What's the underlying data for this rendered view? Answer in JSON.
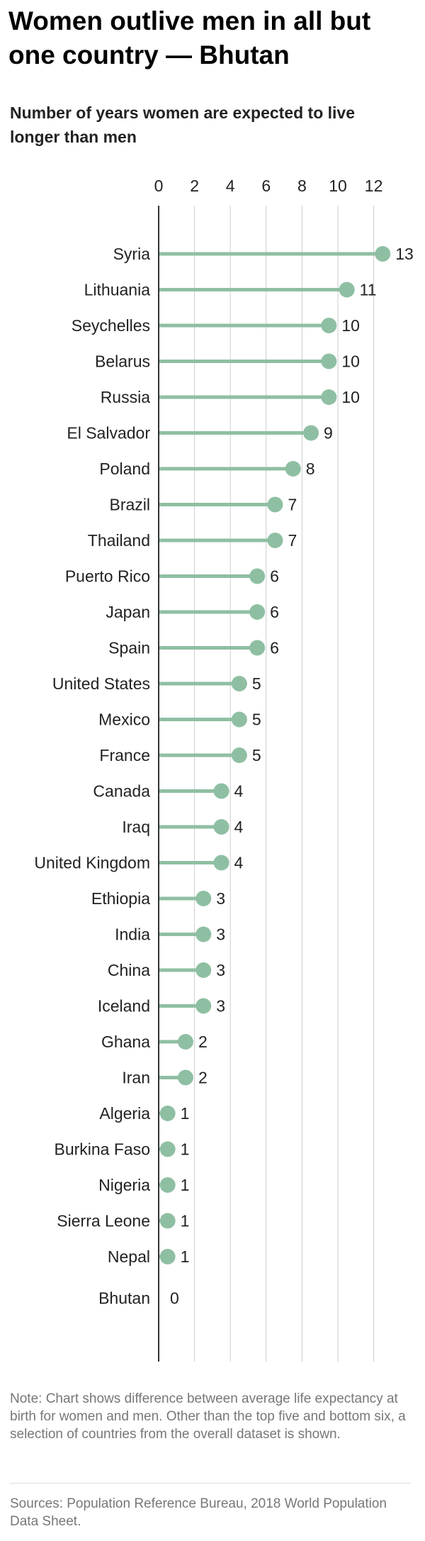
{
  "title": "Women outlive men in all but one country — Bhutan",
  "subtitle": "Number of years women are expected to live longer than men",
  "note": "Note: Chart shows difference between average life expectancy at birth for women and men. Other than the top five and bottom six, a selection of countries from the overall dataset is shown.",
  "sources": "Sources: Population Reference Bureau, 2018 World Population Data Sheet.",
  "colors": {
    "dot": "#8fbfa3",
    "grid": "#cccccc",
    "axis": "#333333",
    "text": "#222222",
    "note": "#777777"
  },
  "chart_data": {
    "type": "lollipop",
    "orientation": "horizontal",
    "xlim": [
      0,
      13
    ],
    "x_ticks": [
      0,
      2,
      4,
      6,
      8,
      10,
      12
    ],
    "grid": true,
    "categories": [
      "Syria",
      "Lithuania",
      "Seychelles",
      "Belarus",
      "Russia",
      "El Salvador",
      "Poland",
      "Brazil",
      "Thailand",
      "Puerto Rico",
      "Japan",
      "Spain",
      "United States",
      "Mexico",
      "France",
      "Canada",
      "Iraq",
      "United Kingdom",
      "Ethiopia",
      "India",
      "China",
      "Iceland",
      "Ghana",
      "Iran",
      "Algeria",
      "Burkina Faso",
      "Nigeria",
      "Sierra Leone",
      "Nepal",
      "Bhutan"
    ],
    "values": [
      12.5,
      10.5,
      9.5,
      9.5,
      9.5,
      8.5,
      7.5,
      6.5,
      6.5,
      5.5,
      5.5,
      5.5,
      4.5,
      4.5,
      4.5,
      3.5,
      3.5,
      3.5,
      2.5,
      2.5,
      2.5,
      2.5,
      1.5,
      1.5,
      0.5,
      0.5,
      0.5,
      0.5,
      0.5,
      0
    ],
    "labels": [
      "13",
      "11",
      "10",
      "10",
      "10",
      "9",
      "8",
      "7",
      "7",
      "6",
      "6",
      "6",
      "5",
      "5",
      "5",
      "4",
      "4",
      "4",
      "3",
      "3",
      "3",
      "3",
      "2",
      "2",
      "1",
      "1",
      "1",
      "1",
      "1",
      "0"
    ]
  }
}
